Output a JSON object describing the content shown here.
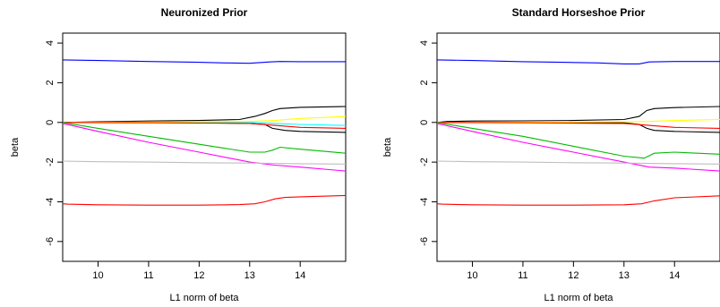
{
  "chart_data": [
    {
      "type": "line",
      "title": "Neuronized Prior",
      "xlabel": "L1 norm of beta",
      "ylabel": "beta",
      "xlim": [
        9.3,
        14.9
      ],
      "ylim": [
        -7,
        4.5
      ],
      "xticks": [
        10,
        11,
        12,
        13,
        14
      ],
      "yticks": [
        -6,
        -4,
        -2,
        0,
        2,
        4
      ],
      "grid": false,
      "series": [
        {
          "color": "#0000ff",
          "x": [
            9.3,
            10,
            11,
            12,
            12.5,
            13.0,
            13.4,
            13.6,
            14.0,
            14.9
          ],
          "y": [
            3.15,
            3.12,
            3.07,
            3.03,
            3.0,
            2.98,
            3.05,
            3.07,
            3.06,
            3.06
          ]
        },
        {
          "color": "#000000",
          "x": [
            9.3,
            10,
            11,
            12,
            12.8,
            13.1,
            13.3,
            13.45,
            13.6,
            14.0,
            14.9
          ],
          "y": [
            0.0,
            0.03,
            0.07,
            0.1,
            0.15,
            0.3,
            0.45,
            0.6,
            0.7,
            0.76,
            0.8
          ]
        },
        {
          "color": "#000000",
          "x": [
            9.3,
            10,
            11,
            12,
            13.0,
            13.3,
            13.45,
            13.7,
            14.0,
            14.9
          ],
          "y": [
            0.0,
            0.0,
            0.0,
            -0.02,
            -0.05,
            -0.1,
            -0.3,
            -0.4,
            -0.45,
            -0.5
          ]
        },
        {
          "color": "#00ffff",
          "x": [
            9.3,
            11,
            13.0,
            13.5,
            14.0,
            14.9
          ],
          "y": [
            0.0,
            0.0,
            0.0,
            -0.05,
            -0.1,
            -0.15
          ]
        },
        {
          "color": "#ffff00",
          "x": [
            9.3,
            11,
            13.0,
            13.5,
            14.0,
            14.9
          ],
          "y": [
            0.0,
            0.02,
            0.05,
            0.1,
            0.2,
            0.3
          ]
        },
        {
          "color": "#ff0000",
          "x": [
            9.3,
            11,
            13.0,
            13.5,
            14.0,
            14.9
          ],
          "y": [
            0.0,
            -0.02,
            -0.05,
            -0.15,
            -0.25,
            -0.3
          ]
        },
        {
          "color": "#00bb00",
          "x": [
            9.3,
            10,
            11,
            12,
            13.0,
            13.3,
            13.45,
            13.6,
            14.0,
            14.9
          ],
          "y": [
            0.0,
            -0.3,
            -0.7,
            -1.1,
            -1.5,
            -1.5,
            -1.4,
            -1.25,
            -1.35,
            -1.55
          ]
        },
        {
          "color": "#ff00ff",
          "x": [
            9.3,
            10,
            11,
            12,
            13,
            13.5,
            14.0,
            14.9
          ],
          "y": [
            -0.05,
            -0.45,
            -1.0,
            -1.5,
            -2.0,
            -2.15,
            -2.25,
            -2.45
          ]
        },
        {
          "color": "#bebebe",
          "x": [
            9.3,
            10,
            11,
            12,
            13,
            14,
            14.9
          ],
          "y": [
            -1.95,
            -1.98,
            -2.0,
            -2.03,
            -2.05,
            -2.08,
            -2.1
          ]
        },
        {
          "color": "#ff0000",
          "x": [
            9.3,
            9.4,
            10,
            11,
            12,
            12.8,
            13.1,
            13.3,
            13.5,
            13.7,
            14.0,
            14.9
          ],
          "y": [
            -4.1,
            -4.12,
            -4.15,
            -4.17,
            -4.17,
            -4.14,
            -4.1,
            -4.0,
            -3.85,
            -3.78,
            -3.75,
            -3.68
          ]
        }
      ]
    },
    {
      "type": "line",
      "title": "Standard Horseshoe Prior",
      "xlabel": "L1 norm of beta",
      "ylabel": "beta",
      "xlim": [
        9.3,
        14.9
      ],
      "ylim": [
        -7,
        4.5
      ],
      "xticks": [
        10,
        11,
        12,
        13,
        14
      ],
      "yticks": [
        -6,
        -4,
        -2,
        0,
        2,
        4
      ],
      "grid": false,
      "series": [
        {
          "color": "#0000ff",
          "x": [
            9.3,
            10,
            11,
            12,
            12.5,
            13.0,
            13.3,
            13.5,
            14.0,
            14.9
          ],
          "y": [
            3.15,
            3.12,
            3.06,
            3.02,
            3.0,
            2.95,
            2.95,
            3.05,
            3.07,
            3.07
          ]
        },
        {
          "color": "#000000",
          "x": [
            9.3,
            9.5,
            10,
            11,
            12,
            13.0,
            13.3,
            13.45,
            13.6,
            14.0,
            14.9
          ],
          "y": [
            0.0,
            0.05,
            0.07,
            0.08,
            0.1,
            0.15,
            0.3,
            0.6,
            0.7,
            0.75,
            0.8
          ]
        },
        {
          "color": "#000000",
          "x": [
            9.3,
            11,
            13.0,
            13.3,
            13.45,
            13.6,
            14.0,
            14.9
          ],
          "y": [
            0.0,
            0.0,
            -0.02,
            -0.1,
            -0.3,
            -0.4,
            -0.45,
            -0.5
          ]
        },
        {
          "color": "#ffff00",
          "x": [
            9.3,
            11,
            13.0,
            13.5,
            14.0,
            14.9
          ],
          "y": [
            0.0,
            0.01,
            0.03,
            0.05,
            0.1,
            0.15
          ]
        },
        {
          "color": "#ff0000",
          "x": [
            9.3,
            11,
            13.0,
            13.5,
            14.0,
            14.9
          ],
          "y": [
            0.0,
            -0.02,
            -0.05,
            -0.15,
            -0.25,
            -0.3
          ]
        },
        {
          "color": "#00bb00",
          "x": [
            9.3,
            10,
            11,
            12,
            13.0,
            13.4,
            13.6,
            14.0,
            14.9
          ],
          "y": [
            0.0,
            -0.3,
            -0.7,
            -1.2,
            -1.7,
            -1.8,
            -1.55,
            -1.5,
            -1.6
          ]
        },
        {
          "color": "#ff00ff",
          "x": [
            9.3,
            10,
            11,
            12,
            13,
            13.5,
            14.0,
            14.9
          ],
          "y": [
            -0.05,
            -0.45,
            -1.0,
            -1.5,
            -2.0,
            -2.25,
            -2.3,
            -2.45
          ]
        },
        {
          "color": "#bebebe",
          "x": [
            9.3,
            10,
            11,
            12,
            13,
            14,
            14.9
          ],
          "y": [
            -1.95,
            -1.98,
            -2.0,
            -2.03,
            -2.05,
            -2.08,
            -2.1
          ]
        },
        {
          "color": "#ff0000",
          "x": [
            9.3,
            9.4,
            10,
            11,
            12,
            13.0,
            13.35,
            13.6,
            14.0,
            14.9
          ],
          "y": [
            -4.1,
            -4.12,
            -4.15,
            -4.17,
            -4.17,
            -4.15,
            -4.1,
            -3.95,
            -3.8,
            -3.7
          ]
        }
      ]
    }
  ]
}
